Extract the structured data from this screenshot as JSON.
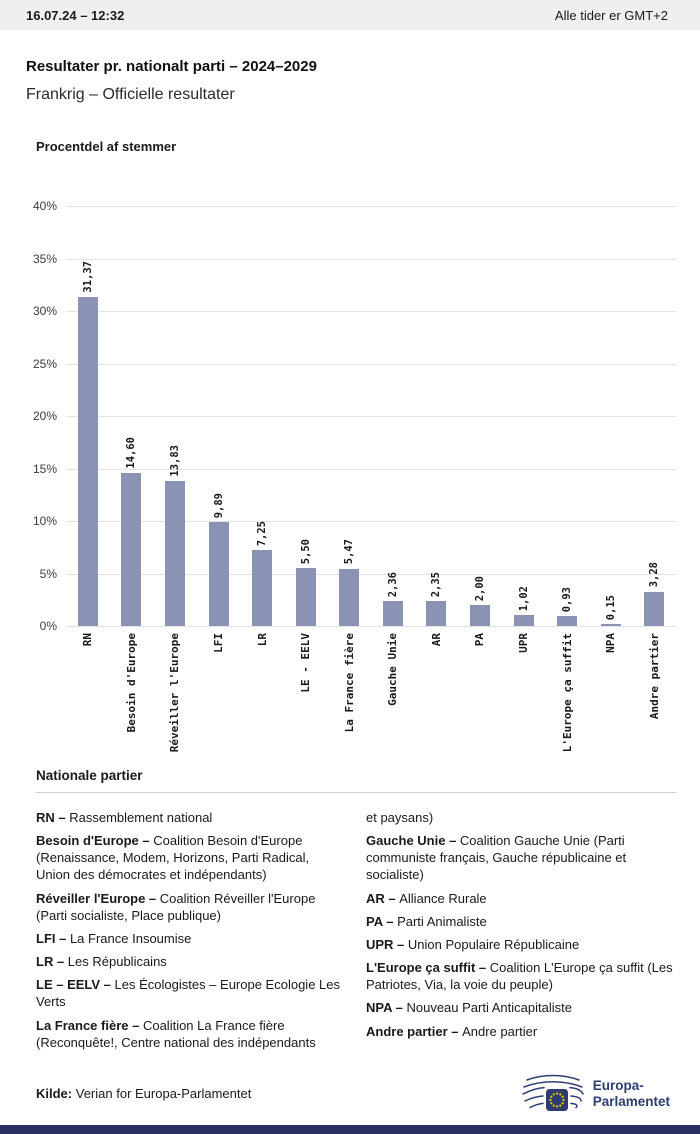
{
  "theme": {
    "topbar_bg": "#efefef",
    "bottom_bar": "#2a3160",
    "logo_blue": "#2e3d6e",
    "star_yellow": "#f7c700",
    "grid_color": "#e3e3e3"
  },
  "topbar": {
    "datetime": "16.07.24 – 12:32",
    "timezone_note": "Alle tider er GMT+2"
  },
  "header": {
    "title": "Resultater pr. nationalt parti – 2024–2029",
    "subtitle": "Frankrig – Officielle resultater"
  },
  "chart_data": {
    "type": "bar",
    "title": "Procentdel af stemmer",
    "categories": [
      "RN",
      "Besoin d'Europe",
      "Réveiller l'Europe",
      "LFI",
      "LR",
      "LE - EELV",
      "La France fière",
      "Gauche Unie",
      "AR",
      "PA",
      "UPR",
      "L'Europe ça suffit",
      "NPA",
      "Andre partier"
    ],
    "values": [
      31.37,
      14.6,
      13.83,
      9.89,
      7.25,
      5.5,
      5.47,
      2.36,
      2.35,
      2.0,
      1.02,
      0.93,
      0.15,
      3.28
    ],
    "value_labels": [
      "31,37",
      "14,60",
      "13,83",
      "9,89",
      "7,25",
      "5,50",
      "5,47",
      "2,36",
      "2,35",
      "2,00",
      "1,02",
      "0,93",
      "0,15",
      "3,28"
    ],
    "xlabel": "",
    "ylabel": "",
    "ylim": [
      0,
      40
    ],
    "ytick_step": 5,
    "grid": true,
    "legend_position": "none",
    "bar_color": "#8b93b5"
  },
  "legend": {
    "heading": "Nationale partier",
    "columns": [
      {
        "items": [
          {
            "term": "RN –",
            "desc": "Rassemblement national"
          },
          {
            "term": "Besoin d'Europe –",
            "desc": "Coalition Besoin d'Europe (Renaissance, Modem, Horizons, Parti Radical, Union des démocrates et indépendants)"
          },
          {
            "term": "Réveiller l'Europe –",
            "desc": "Coalition Réveiller l'Europe (Parti socialiste, Place publique)"
          },
          {
            "term": "LFI –",
            "desc": "La France Insoumise"
          },
          {
            "term": "LR –",
            "desc": "Les Républicains"
          },
          {
            "term": "LE – EELV –",
            "desc": "Les Écologistes – Europe Ecologie Les Verts"
          },
          {
            "term": "La France fière –",
            "desc": "Coalition La France fière (Reconquête!, Centre national des indépendants"
          }
        ]
      },
      {
        "items": [
          {
            "term": "",
            "desc": "et paysans)"
          },
          {
            "term": "Gauche Unie –",
            "desc": "Coalition Gauche Unie (Parti communiste français, Gauche républicaine et socialiste)"
          },
          {
            "term": "AR –",
            "desc": "Alliance Rurale"
          },
          {
            "term": "PA –",
            "desc": "Parti Animaliste"
          },
          {
            "term": "UPR –",
            "desc": "Union Populaire Républicaine"
          },
          {
            "term": "L'Europe ça suffit –",
            "desc": "Coalition L'Europe ça suffit (Les Patriotes, Via, la voie du peuple)"
          },
          {
            "term": "NPA –",
            "desc": "Nouveau Parti Anticapitaliste"
          },
          {
            "term": "Andre partier –",
            "desc": "Andre partier"
          }
        ]
      }
    ]
  },
  "footer": {
    "source_label": "Kilde:",
    "source_text": "Verian for Europa-Parlamentet",
    "logo_line1": "Europa-",
    "logo_line2": "Parlamentet"
  }
}
